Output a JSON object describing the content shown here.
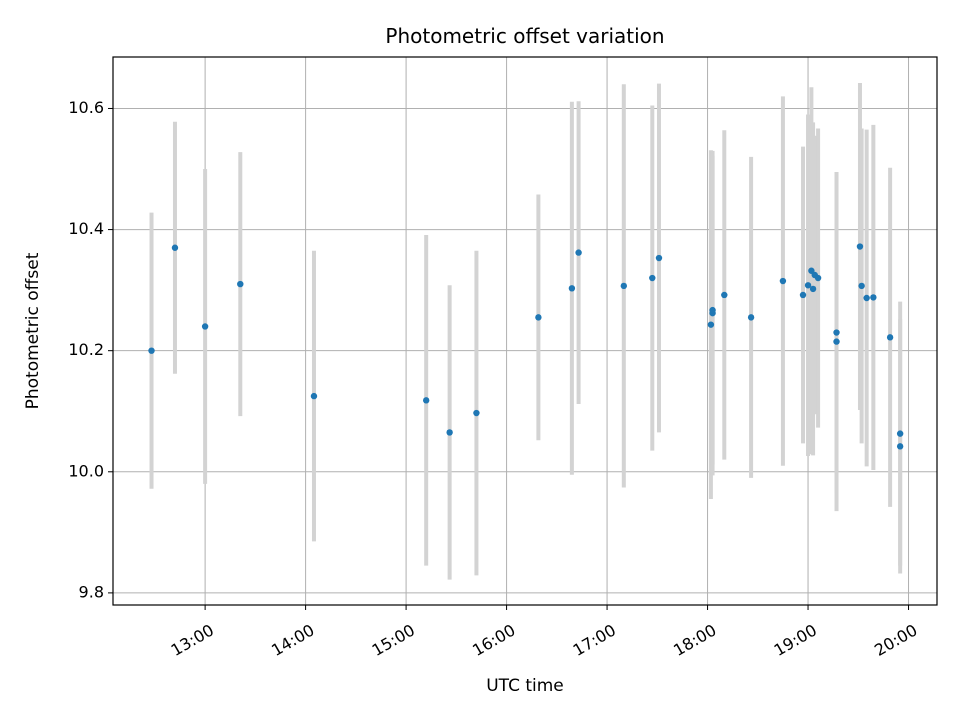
{
  "chart_data": {
    "type": "scatter",
    "title": "Photometric offset variation",
    "xlabel": "UTC time",
    "ylabel": "Photometric offset",
    "x_tick_labels": [
      "13:00",
      "14:00",
      "15:00",
      "16:00",
      "17:00",
      "18:00",
      "19:00",
      "20:00"
    ],
    "y_tick_labels": [
      "9.8",
      "10.0",
      "10.2",
      "10.4",
      "10.6"
    ],
    "xlim": [
      "12:05",
      "20:17"
    ],
    "ylim": [
      9.78,
      10.685
    ],
    "grid": true,
    "point_color": "#1f77b4",
    "errorbar_color": "#d3d3d3",
    "series": [
      {
        "points": [
          {
            "x": "12:28",
            "y": 10.2,
            "err": 0.228
          },
          {
            "x": "12:42",
            "y": 10.37,
            "err": 0.208
          },
          {
            "x": "13:00",
            "y": 10.24,
            "err": 0.26
          },
          {
            "x": "13:21",
            "y": 10.31,
            "err": 0.218
          },
          {
            "x": "14:05",
            "y": 10.125,
            "err": 0.24
          },
          {
            "x": "15:12",
            "y": 10.118,
            "err": 0.273
          },
          {
            "x": "15:26",
            "y": 10.065,
            "err": 0.243
          },
          {
            "x": "15:42",
            "y": 10.097,
            "err": 0.268
          },
          {
            "x": "16:19",
            "y": 10.255,
            "err": 0.203
          },
          {
            "x": "16:39",
            "y": 10.303,
            "err": 0.308
          },
          {
            "x": "16:43",
            "y": 10.362,
            "err": 0.25
          },
          {
            "x": "17:10",
            "y": 10.307,
            "err": 0.333
          },
          {
            "x": "17:27",
            "y": 10.32,
            "err": 0.285
          },
          {
            "x": "17:31",
            "y": 10.353,
            "err": 0.288
          },
          {
            "x": "18:02",
            "y": 10.243,
            "err": 0.288
          },
          {
            "x": "18:03",
            "y": 10.262,
            "err": 0.268
          },
          {
            "x": "18:03",
            "y": 10.267,
            "err": 0.255
          },
          {
            "x": "18:10",
            "y": 10.292,
            "err": 0.272
          },
          {
            "x": "18:26",
            "y": 10.255,
            "err": 0.265
          },
          {
            "x": "18:45",
            "y": 10.315,
            "err": 0.305
          },
          {
            "x": "18:57",
            "y": 10.292,
            "err": 0.245
          },
          {
            "x": "19:00",
            "y": 10.308,
            "err": 0.282
          },
          {
            "x": "19:02",
            "y": 10.332,
            "err": 0.303
          },
          {
            "x": "19:03",
            "y": 10.302,
            "err": 0.275
          },
          {
            "x": "19:04",
            "y": 10.325,
            "err": 0.23
          },
          {
            "x": "19:06",
            "y": 10.32,
            "err": 0.247
          },
          {
            "x": "19:17",
            "y": 10.23,
            "err": 0.265
          },
          {
            "x": "19:17",
            "y": 10.215,
            "err": 0.28
          },
          {
            "x": "19:31",
            "y": 10.372,
            "err": 0.27
          },
          {
            "x": "19:32",
            "y": 10.307,
            "err": 0.26
          },
          {
            "x": "19:35",
            "y": 10.287,
            "err": 0.278
          },
          {
            "x": "19:39",
            "y": 10.288,
            "err": 0.285
          },
          {
            "x": "19:49",
            "y": 10.222,
            "err": 0.28
          },
          {
            "x": "19:55",
            "y": 10.063,
            "err": 0.218
          },
          {
            "x": "19:55",
            "y": 10.042,
            "err": 0.21
          }
        ]
      }
    ]
  }
}
